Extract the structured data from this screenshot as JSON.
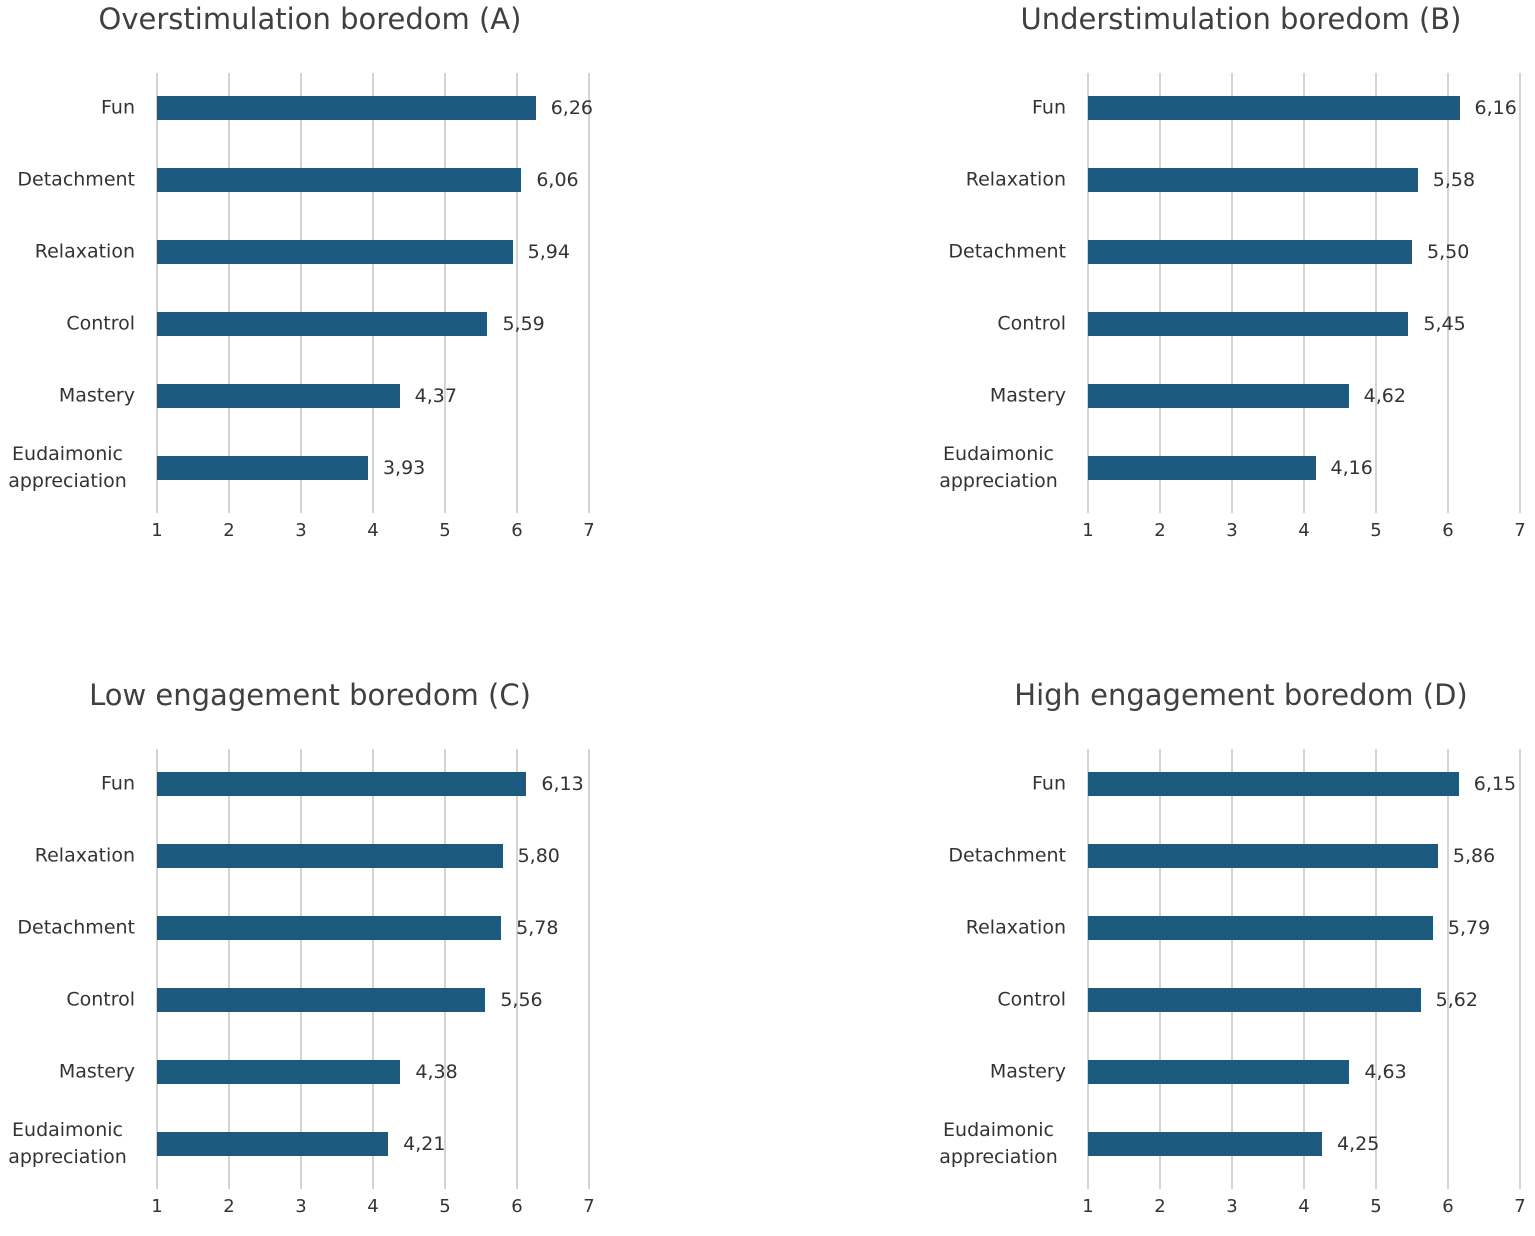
{
  "chart_data": [
    {
      "type": "bar",
      "title": "Overstimulation boredom (A)",
      "orientation": "horizontal",
      "categories": [
        "Fun",
        "Detachment",
        "Relaxation",
        "Control",
        "Mastery",
        "Eudaimonic appreciation"
      ],
      "values": [
        6.26,
        6.06,
        5.94,
        5.59,
        4.37,
        3.93
      ],
      "value_labels": [
        "6,26",
        "6,06",
        "5,94",
        "5,59",
        "4,37",
        "3,93"
      ],
      "color": "#1b5a7e",
      "xlim": [
        1,
        7
      ],
      "xticks": [
        1,
        2,
        3,
        4,
        5,
        6,
        7
      ],
      "grid": true
    },
    {
      "type": "bar",
      "title": "Understimulation boredom (B)",
      "orientation": "horizontal",
      "categories": [
        "Fun",
        "Relaxation",
        "Detachment",
        "Control",
        "Mastery",
        "Eudaimonic appreciation"
      ],
      "values": [
        6.16,
        5.58,
        5.5,
        5.45,
        4.62,
        4.16
      ],
      "value_labels": [
        "6,16",
        "5,58",
        "5,50",
        "5,45",
        "4,62",
        "4,16"
      ],
      "color": "#1b5a7e",
      "xlim": [
        1,
        7
      ],
      "xticks": [
        1,
        2,
        3,
        4,
        5,
        6,
        7
      ],
      "grid": true
    },
    {
      "type": "bar",
      "title": "Low engagement boredom (C)",
      "orientation": "horizontal",
      "categories": [
        "Fun",
        "Relaxation",
        "Detachment",
        "Control",
        "Mastery",
        "Eudaimonic appreciation"
      ],
      "values": [
        6.13,
        5.8,
        5.78,
        5.56,
        4.38,
        4.21
      ],
      "value_labels": [
        "6,13",
        "5,80",
        "5,78",
        "5,56",
        "4,38",
        "4,21"
      ],
      "color": "#1b5a7e",
      "xlim": [
        1,
        7
      ],
      "xticks": [
        1,
        2,
        3,
        4,
        5,
        6,
        7
      ],
      "grid": true
    },
    {
      "type": "bar",
      "title": "High engagement boredom (D)",
      "orientation": "horizontal",
      "categories": [
        "Fun",
        "Detachment",
        "Relaxation",
        "Control",
        "Mastery",
        "Eudaimonic appreciation"
      ],
      "values": [
        6.15,
        5.86,
        5.79,
        5.62,
        4.63,
        4.25
      ],
      "value_labels": [
        "6,15",
        "5,86",
        "5,79",
        "5,62",
        "4,63",
        "4,25"
      ],
      "color": "#1b5a7e",
      "xlim": [
        1,
        7
      ],
      "xticks": [
        1,
        2,
        3,
        4,
        5,
        6,
        7
      ],
      "grid": true
    }
  ]
}
